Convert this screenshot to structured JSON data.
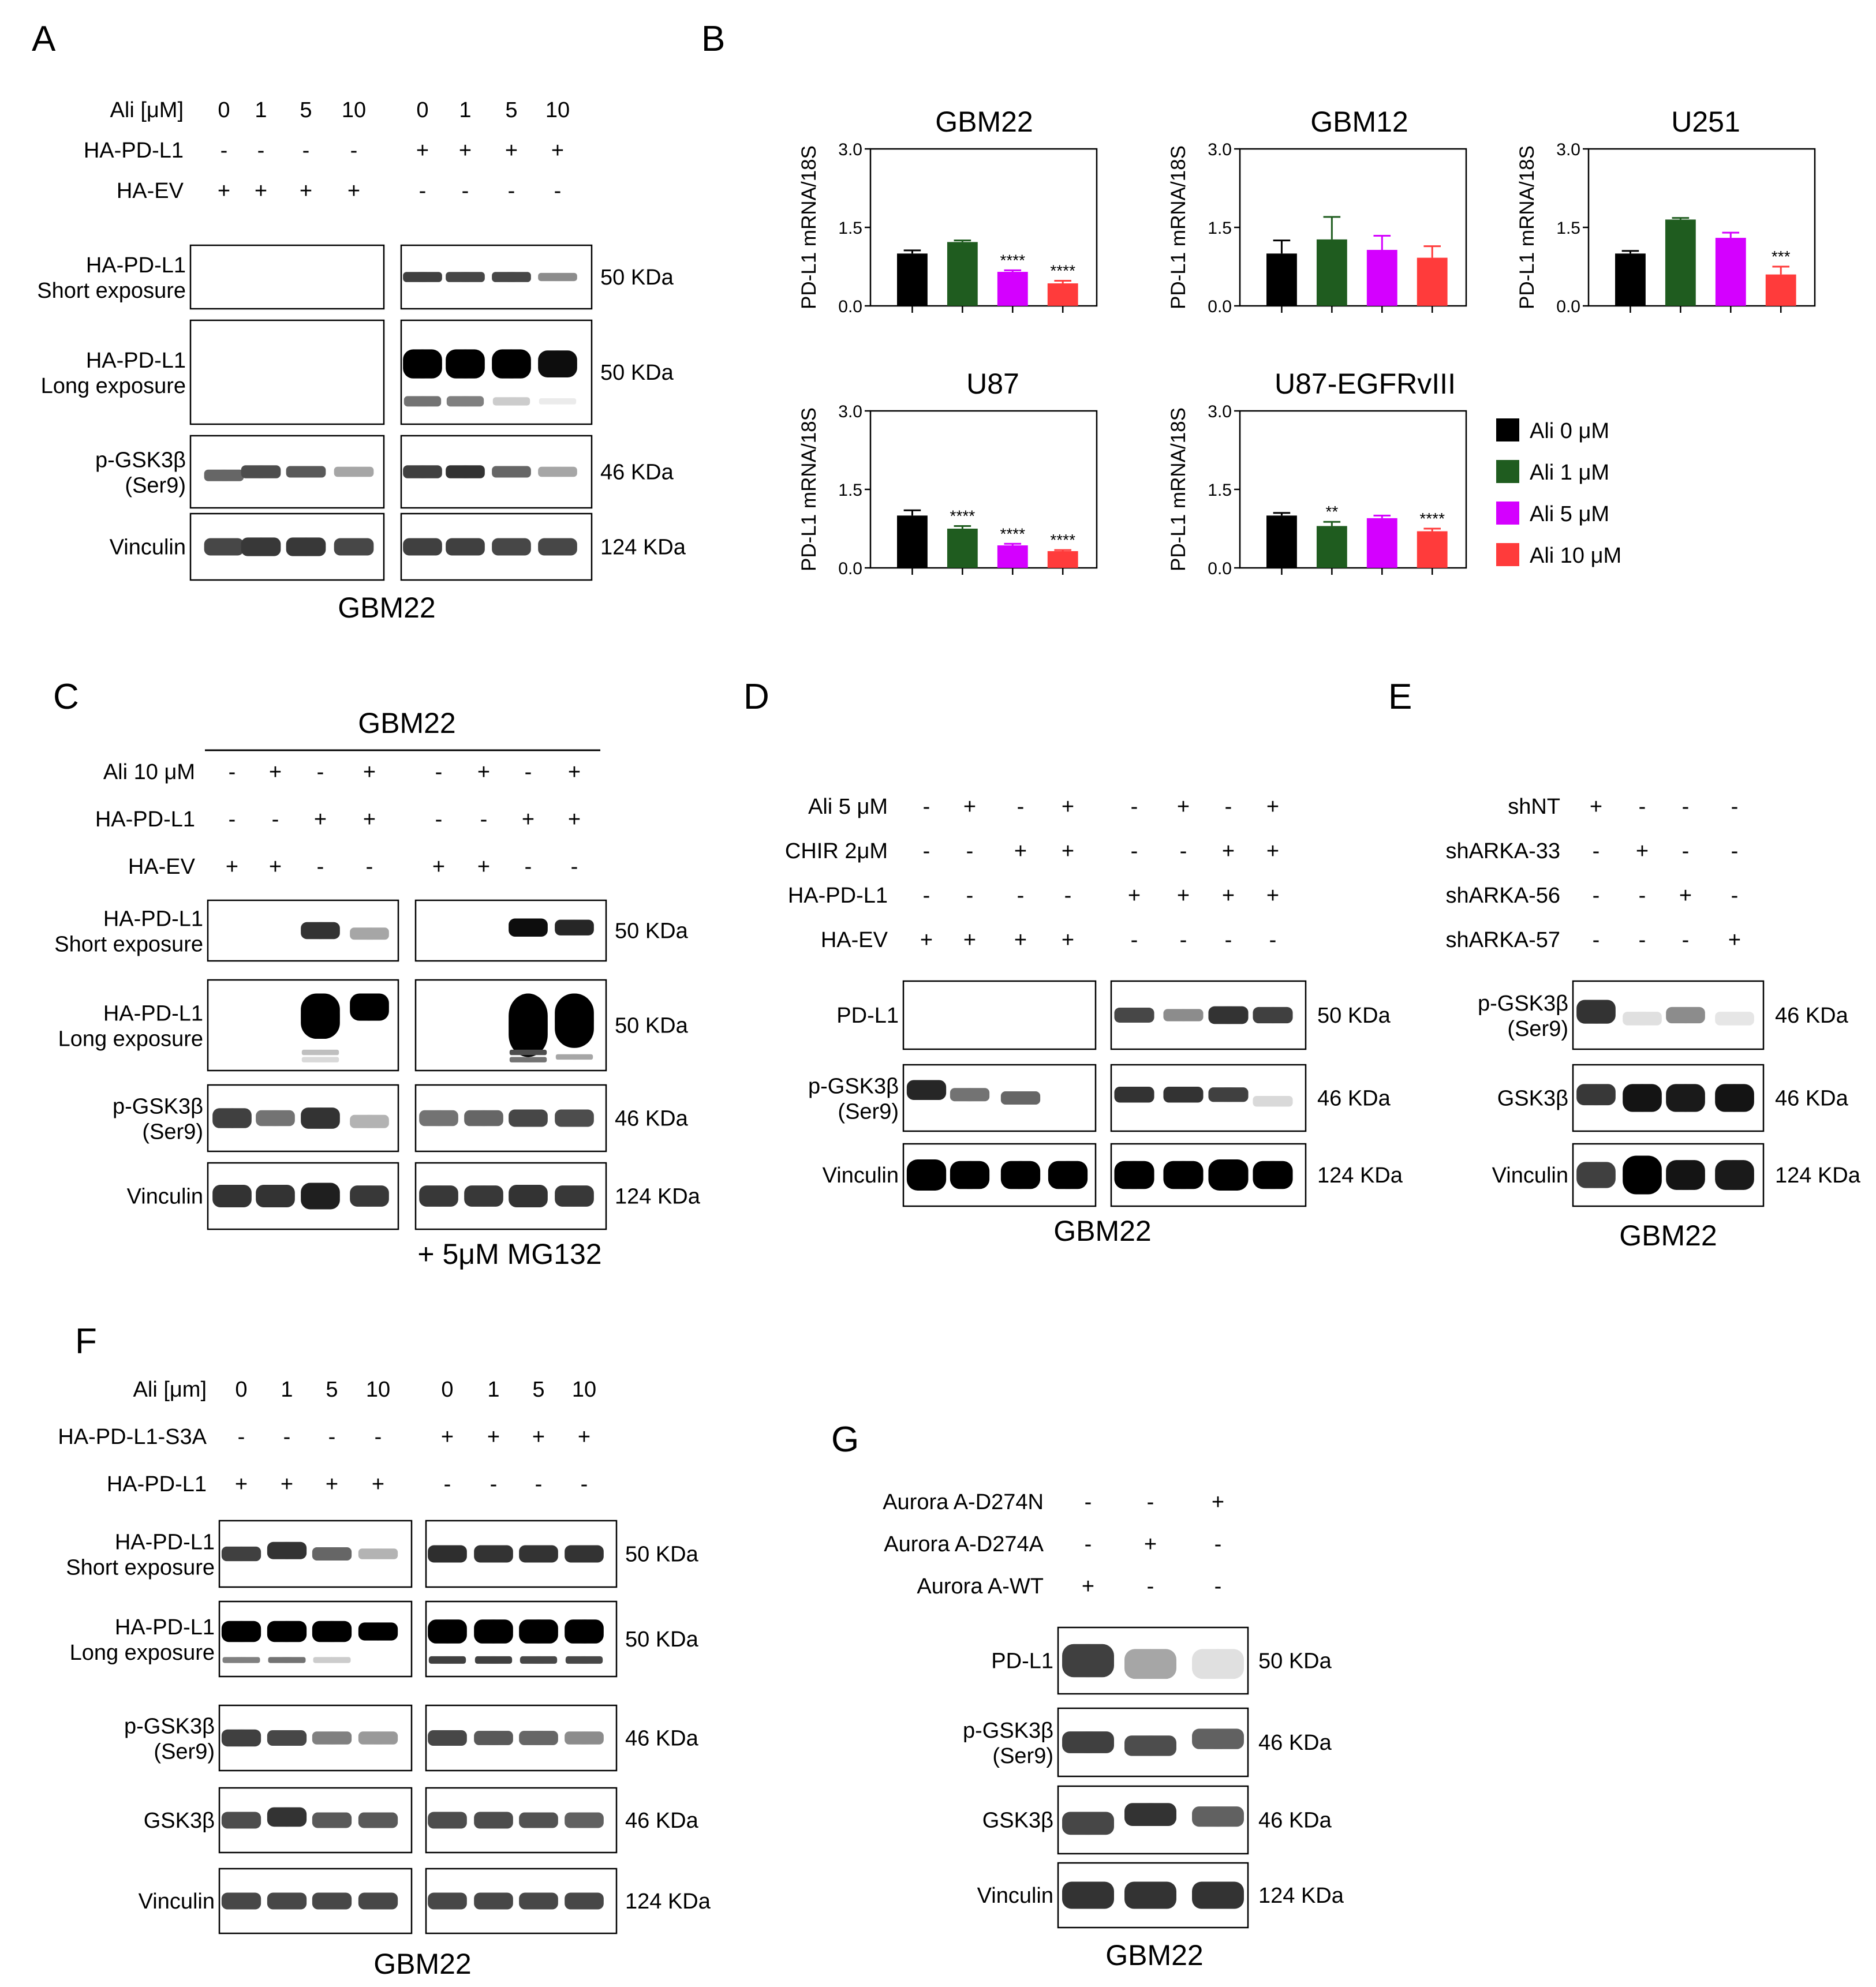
{
  "panels": {
    "A": "A",
    "B": "B",
    "C": "C",
    "D": "D",
    "E": "E",
    "F": "F",
    "G": "G"
  },
  "colors": {
    "ali0": "#000000",
    "ali1": "#1f5c1f",
    "ali5": "#d400ff",
    "ali10": "#ff3b3b"
  },
  "panelA": {
    "rows": [
      {
        "label": "Ali [μM]",
        "values": [
          "0",
          "1",
          "5",
          "10",
          "0",
          "1",
          "5",
          "10"
        ]
      },
      {
        "label": "HA-PD-L1",
        "values": [
          "-",
          "-",
          "-",
          "-",
          "+",
          "+",
          "+",
          "+"
        ]
      },
      {
        "label": "HA-EV",
        "values": [
          "+",
          "+",
          "+",
          "+",
          "-",
          "-",
          "-",
          "-"
        ]
      }
    ],
    "blots": [
      {
        "label": [
          "HA-PD-L1",
          "Short exposure"
        ],
        "size": "50 KDa"
      },
      {
        "label": [
          "HA-PD-L1",
          "Long exposure"
        ],
        "size": "50 KDa"
      },
      {
        "label": [
          "p-GSK3β",
          "(Ser9)"
        ],
        "size": "46 KDa"
      },
      {
        "label": [
          "Vinculin"
        ],
        "size": "124 KDa"
      }
    ],
    "caption": "GBM22"
  },
  "panelC": {
    "header": "GBM22",
    "rows": [
      {
        "label": "Ali 10 μM",
        "values": [
          "-",
          "+",
          "-",
          "+",
          "-",
          "+",
          "-",
          "+"
        ]
      },
      {
        "label": "HA-PD-L1",
        "values": [
          "-",
          "-",
          "+",
          "+",
          "-",
          "-",
          "+",
          "+"
        ]
      },
      {
        "label": "HA-EV",
        "values": [
          "+",
          "+",
          "-",
          "-",
          "+",
          "+",
          "-",
          "-"
        ]
      }
    ],
    "blots": [
      {
        "label": [
          "HA-PD-L1",
          "Short exposure"
        ],
        "size": "50 KDa"
      },
      {
        "label": [
          "HA-PD-L1",
          "Long exposure"
        ],
        "size": "50 KDa"
      },
      {
        "label": [
          "p-GSK3β",
          "(Ser9)"
        ],
        "size": "46 KDa"
      },
      {
        "label": [
          "Vinculin"
        ],
        "size": "124 KDa"
      }
    ],
    "caption": "+ 5μM MG132"
  },
  "panelD": {
    "rows": [
      {
        "label": "Ali 5 μM",
        "values": [
          "-",
          "+",
          "-",
          "+",
          "-",
          "+",
          "-",
          "+"
        ]
      },
      {
        "label": "CHIR 2μM",
        "values": [
          "-",
          "-",
          "+",
          "+",
          "-",
          "-",
          "+",
          "+"
        ]
      },
      {
        "label": "HA-PD-L1",
        "values": [
          "-",
          "-",
          "-",
          "-",
          "+",
          "+",
          "+",
          "+"
        ]
      },
      {
        "label": "HA-EV",
        "values": [
          "+",
          "+",
          "+",
          "+",
          "-",
          "-",
          "-",
          "-"
        ]
      }
    ],
    "blots": [
      {
        "label": [
          "PD-L1"
        ],
        "size": "50 KDa"
      },
      {
        "label": [
          "p-GSK3β",
          "(Ser9)"
        ],
        "size": "46 KDa"
      },
      {
        "label": [
          "Vinculin"
        ],
        "size": "124 KDa"
      }
    ],
    "caption": "GBM22"
  },
  "panelE": {
    "rows": [
      {
        "label": "shNT",
        "values": [
          "+",
          "-",
          "-",
          "-"
        ]
      },
      {
        "label": "shARKA-33",
        "values": [
          "-",
          "+",
          "-",
          "-"
        ]
      },
      {
        "label": "shARKA-56",
        "values": [
          "-",
          "-",
          "+",
          "-"
        ]
      },
      {
        "label": "shARKA-57",
        "values": [
          "-",
          "-",
          "-",
          "+"
        ]
      }
    ],
    "blots": [
      {
        "label": [
          "p-GSK3β",
          "(Ser9)"
        ],
        "size": "46 KDa"
      },
      {
        "label": [
          "GSK3β"
        ],
        "size": "46 KDa"
      },
      {
        "label": [
          "Vinculin"
        ],
        "size": "124 KDa"
      }
    ],
    "caption": "GBM22"
  },
  "panelF": {
    "rows": [
      {
        "label": "Ali [μm]",
        "values": [
          "0",
          "1",
          "5",
          "10",
          "0",
          "1",
          "5",
          "10"
        ]
      },
      {
        "label": "HA-PD-L1-S3A",
        "values": [
          "-",
          "-",
          "-",
          "-",
          "+",
          "+",
          "+",
          "+"
        ]
      },
      {
        "label": "HA-PD-L1",
        "values": [
          "+",
          "+",
          "+",
          "+",
          "-",
          "-",
          "-",
          "-"
        ]
      }
    ],
    "blots": [
      {
        "label": [
          "HA-PD-L1",
          "Short exposure"
        ],
        "size": "50 KDa"
      },
      {
        "label": [
          "HA-PD-L1",
          "Long exposure"
        ],
        "size": "50 KDa"
      },
      {
        "label": [
          "p-GSK3β",
          "(Ser9)"
        ],
        "size": "46 KDa"
      },
      {
        "label": [
          "GSK3β"
        ],
        "size": "46 KDa"
      },
      {
        "label": [
          "Vinculin"
        ],
        "size": "124 KDa"
      }
    ],
    "caption": "GBM22"
  },
  "panelG": {
    "rows": [
      {
        "label": "Aurora A-D274N",
        "values": [
          "-",
          "-",
          "+"
        ]
      },
      {
        "label": "Aurora A-D274A",
        "values": [
          "-",
          "+",
          "-"
        ]
      },
      {
        "label": "Aurora A-WT",
        "values": [
          "+",
          "-",
          "-"
        ]
      }
    ],
    "blots": [
      {
        "label": [
          "PD-L1"
        ],
        "size": "50 KDa"
      },
      {
        "label": [
          "p-GSK3β",
          "(Ser9)"
        ],
        "size": "46 KDa"
      },
      {
        "label": [
          "GSK3β"
        ],
        "size": "46 KDa"
      },
      {
        "label": [
          "Vinculin"
        ],
        "size": "124 KDa"
      }
    ],
    "caption": "GBM22"
  },
  "chart_data": [
    {
      "type": "bar",
      "title": "GBM22",
      "ylabel": "PD-L1 mRNA/18S",
      "ylim": [
        0,
        3.0
      ],
      "yticks": [
        "0.0",
        "1.5",
        "3.0"
      ],
      "categories": [
        "Ali 0 μM",
        "Ali 1 μM",
        "Ali 5 μM",
        "Ali 10 μM"
      ],
      "values": [
        1.0,
        1.22,
        0.65,
        0.43
      ],
      "errors": [
        0.06,
        0.03,
        0.03,
        0.05
      ],
      "annotations": [
        "",
        "",
        "****",
        "****"
      ]
    },
    {
      "type": "bar",
      "title": "GBM12",
      "ylabel": "PD-L1 mRNA/18S",
      "ylim": [
        0,
        3.0
      ],
      "yticks": [
        "0.0",
        "1.5",
        "3.0"
      ],
      "categories": [
        "Ali 0 μM",
        "Ali 1 μM",
        "Ali 5 μM",
        "Ali 10 μM"
      ],
      "values": [
        1.0,
        1.27,
        1.07,
        0.92
      ],
      "errors": [
        0.25,
        0.43,
        0.27,
        0.22
      ],
      "annotations": [
        "",
        "",
        "",
        ""
      ]
    },
    {
      "type": "bar",
      "title": "U251",
      "ylabel": "PD-L1 mRNA/18S",
      "ylim": [
        0,
        3.0
      ],
      "yticks": [
        "0.0",
        "1.5",
        "3.0"
      ],
      "categories": [
        "Ali 0 μM",
        "Ali 1 μM",
        "Ali 5 μM",
        "Ali 10 μM"
      ],
      "values": [
        1.0,
        1.65,
        1.3,
        0.6
      ],
      "errors": [
        0.05,
        0.03,
        0.1,
        0.15
      ],
      "annotations": [
        "",
        "",
        "",
        "***"
      ]
    },
    {
      "type": "bar",
      "title": "U87",
      "ylabel": "PD-L1 mRNA/18S",
      "ylim": [
        0,
        3.0
      ],
      "yticks": [
        "0.0",
        "1.5",
        "3.0"
      ],
      "categories": [
        "Ali 0 μM",
        "Ali 1 μM",
        "Ali 5 μM",
        "Ali 10 μM"
      ],
      "values": [
        1.0,
        0.75,
        0.43,
        0.32
      ],
      "errors": [
        0.1,
        0.05,
        0.03,
        0.02
      ],
      "annotations": [
        "",
        "****",
        "****",
        "****"
      ]
    },
    {
      "type": "bar",
      "title": "U87-EGFRvIII",
      "ylabel": "PD-L1 mRNA/18S",
      "ylim": [
        0,
        3.0
      ],
      "yticks": [
        "0.0",
        "1.5",
        "3.0"
      ],
      "categories": [
        "Ali 0 μM",
        "Ali 1 μM",
        "Ali 5 μM",
        "Ali 10 μM"
      ],
      "values": [
        1.0,
        0.8,
        0.95,
        0.7
      ],
      "errors": [
        0.05,
        0.08,
        0.05,
        0.05
      ],
      "annotations": [
        "",
        "**",
        "",
        "****"
      ]
    }
  ],
  "legend": [
    "Ali 0 μM",
    "Ali 1 μM",
    "Ali 5 μM",
    "Ali 10 μM"
  ]
}
